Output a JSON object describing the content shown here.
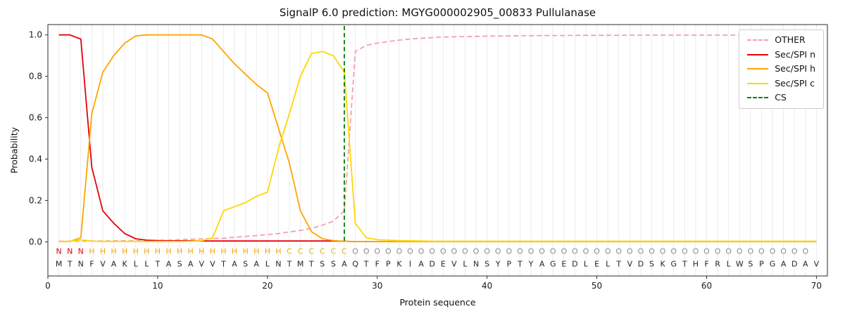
{
  "chart_data": {
    "type": "line",
    "title": "SignalP 6.0 prediction: MGYG000002905_00833 Pullulanase",
    "xlabel": "Protein sequence",
    "ylabel": "Probability",
    "xlim": [
      0,
      71
    ],
    "ylim": [
      -0.165,
      1.05
    ],
    "xticks": [
      0,
      10,
      20,
      30,
      40,
      50,
      60,
      70
    ],
    "yticks": [
      0.0,
      0.2,
      0.4,
      0.6,
      0.8,
      1.0
    ],
    "x_range": [
      1,
      70
    ],
    "grid": "light vertical line at every residue position",
    "legend_position": "upper right",
    "series": [
      {
        "name": "OTHER",
        "color": "#f5a0aa",
        "style": "dashed",
        "values": [
          0.003,
          0.003,
          0.003,
          0.004,
          0.004,
          0.005,
          0.005,
          0.005,
          0.006,
          0.007,
          0.008,
          0.01,
          0.012,
          0.014,
          0.016,
          0.018,
          0.022,
          0.026,
          0.03,
          0.035,
          0.04,
          0.048,
          0.055,
          0.065,
          0.08,
          0.1,
          0.15,
          0.92,
          0.95,
          0.96,
          0.968,
          0.975,
          0.98,
          0.984,
          0.987,
          0.99,
          0.991,
          0.992,
          0.993,
          0.994,
          0.995,
          0.995,
          0.996,
          0.996,
          0.997,
          0.997,
          0.997,
          0.998,
          0.998,
          0.998,
          0.998,
          0.998,
          0.999,
          0.999,
          0.999,
          0.999,
          0.999,
          0.999,
          0.999,
          0.999,
          0.999,
          0.999,
          0.999,
          0.999,
          0.999,
          0.999,
          0.999,
          0.999,
          0.999,
          0.999
        ]
      },
      {
        "name": "Sec/SPI n",
        "color": "#e8000b",
        "style": "solid",
        "values": [
          1.0,
          1.0,
          0.98,
          0.36,
          0.15,
          0.09,
          0.04,
          0.015,
          0.008,
          0.006,
          0.005,
          0.005,
          0.005,
          0.004,
          0.004,
          0.004,
          0.004,
          0.004,
          0.004,
          0.004,
          0.004,
          0.004,
          0.004,
          0.004,
          0.004,
          0.004,
          0.003,
          0.001,
          0.001,
          0.001,
          0.001,
          0.001,
          0.001,
          0.001,
          0.001,
          0.001,
          0.001,
          0.001,
          0.001,
          0.001,
          0.001,
          0.001,
          0.001,
          0.001,
          0.001,
          0.001,
          0.001,
          0.001,
          0.001,
          0.001,
          0.001,
          0.001,
          0.001,
          0.001,
          0.001,
          0.001,
          0.001,
          0.001,
          0.001,
          0.001,
          0.001,
          0.001,
          0.001,
          0.001,
          0.001,
          0.001,
          0.001,
          0.001,
          0.001,
          0.001
        ]
      },
      {
        "name": "Sec/SPI h",
        "color": "#ffa500",
        "style": "solid",
        "values": [
          0.001,
          0.002,
          0.02,
          0.62,
          0.82,
          0.9,
          0.96,
          0.995,
          1.0,
          1.0,
          1.0,
          1.0,
          1.0,
          1.0,
          0.98,
          0.92,
          0.86,
          0.81,
          0.76,
          0.72,
          0.55,
          0.38,
          0.15,
          0.05,
          0.015,
          0.006,
          0.003,
          0.001,
          0.001,
          0.001,
          0.001,
          0.001,
          0.001,
          0.001,
          0.001,
          0.001,
          0.001,
          0.001,
          0.001,
          0.001,
          0.001,
          0.001,
          0.001,
          0.001,
          0.001,
          0.001,
          0.001,
          0.001,
          0.001,
          0.001,
          0.001,
          0.001,
          0.001,
          0.001,
          0.001,
          0.001,
          0.001,
          0.001,
          0.001,
          0.001,
          0.001,
          0.001,
          0.001,
          0.001,
          0.001,
          0.001,
          0.001,
          0.001,
          0.001,
          0.001
        ]
      },
      {
        "name": "Sec/SPI c",
        "color": "#ffd700",
        "style": "solid",
        "values": [
          0.001,
          0.003,
          0.01,
          0.003,
          0.002,
          0.002,
          0.002,
          0.002,
          0.002,
          0.002,
          0.002,
          0.002,
          0.003,
          0.005,
          0.02,
          0.15,
          0.17,
          0.19,
          0.22,
          0.24,
          0.45,
          0.62,
          0.8,
          0.91,
          0.92,
          0.9,
          0.82,
          0.09,
          0.02,
          0.01,
          0.008,
          0.006,
          0.005,
          0.004,
          0.003,
          0.003,
          0.003,
          0.003,
          0.003,
          0.003,
          0.003,
          0.003,
          0.003,
          0.003,
          0.003,
          0.003,
          0.003,
          0.003,
          0.003,
          0.003,
          0.003,
          0.003,
          0.003,
          0.003,
          0.003,
          0.003,
          0.003,
          0.003,
          0.003,
          0.003,
          0.003,
          0.003,
          0.003,
          0.003,
          0.003,
          0.003,
          0.003,
          0.003,
          0.003,
          0.003
        ]
      }
    ],
    "cs_marker": {
      "name": "CS",
      "position": 27,
      "color": "#008000",
      "style": "dashed"
    },
    "region_row": {
      "labels": "NNNHHHHHHHHHHHHHHHHHHCCCCCCOOOOOOOOOOOOOOOOOOOOOOOOOOOOOOOOOOOOOOOOOO",
      "colors": {
        "N": "#e8000b",
        "H": "#ffa500",
        "C": "#e3b800",
        "O": "#8c8c8c"
      }
    },
    "sequence_row": {
      "residues": "MTNFVAKLLTASAVVTASALNTMTSSAQTFPKIADEVLNSYPTYAGEDLELTVDSKGTHFRLWSPGADAV",
      "color": "#262626"
    }
  }
}
